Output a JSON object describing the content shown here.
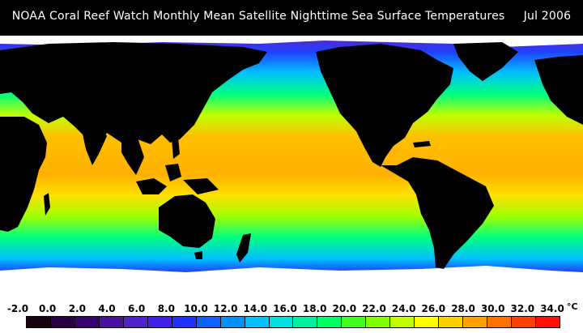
{
  "title": "NOAA Coral Reef Watch Monthly Mean Satellite Nighttime Sea Surface Temperatures     Jul 2006",
  "legend": {
    "ticks": [
      "-2.0",
      "0.0",
      "2.0",
      "4.0",
      "6.0",
      "8.0",
      "10.0",
      "12.0",
      "14.0",
      "16.0",
      "18.0",
      "20.0",
      "22.0",
      "24.0",
      "26.0",
      "28.0",
      "30.0",
      "32.0",
      "34.0"
    ],
    "unit": "°C",
    "colors": [
      "#1a0010",
      "#2a0040",
      "#3a0070",
      "#4a10a0",
      "#5020c8",
      "#4020e8",
      "#2030ff",
      "#1060ff",
      "#0090ff",
      "#00c0ff",
      "#00e0e0",
      "#00f0a0",
      "#00ff60",
      "#40ff20",
      "#80ff00",
      "#c0ff00",
      "#ffff00",
      "#ffd000",
      "#ffa000",
      "#ff7000",
      "#ff4000",
      "#ff1000"
    ]
  },
  "map_colors": {
    "land": "#000000",
    "ice": "#ffffff",
    "tropical_warm": "#ffb000",
    "warm": "#ffe000",
    "mild": "#a0ff00",
    "temperate": "#00ff80",
    "cool": "#00d0ff",
    "cold": "#2040ff",
    "polar": "#6020c0"
  }
}
